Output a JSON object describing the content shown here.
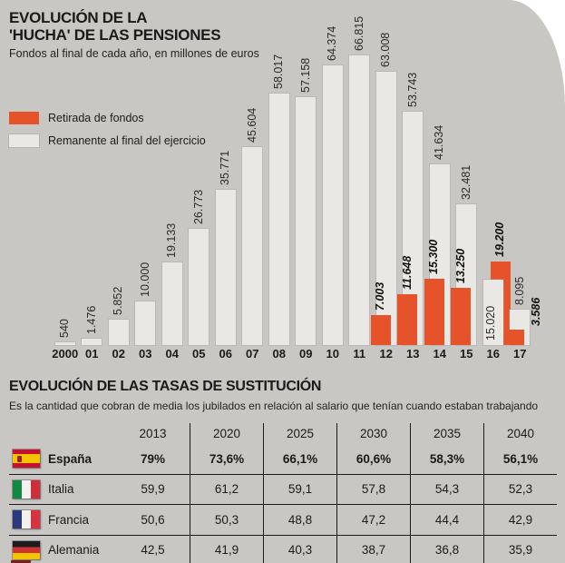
{
  "colors": {
    "background": "#c8c7c4",
    "bar_remanente": "#e9e8e5",
    "bar_retirada": "#e6532a",
    "text": "#1a1a1a"
  },
  "top_chart": {
    "title_line1": "EVOLUCIÓN DE LA",
    "title_line2": "'HUCHA' DE LAS PENSIONES",
    "subtitle": "Fondos al final de cada año, en millones de euros",
    "legend": [
      {
        "label": "Retirada de fondos",
        "color": "#e6532a"
      },
      {
        "label": "Remanente al final del ejercicio",
        "color": "#e9e8e5"
      }
    ],
    "bars": [
      {
        "year": "2000",
        "remanente": 540,
        "remanente_label": "540"
      },
      {
        "year": "01",
        "remanente": 1476,
        "remanente_label": "1.476"
      },
      {
        "year": "02",
        "remanente": 5852,
        "remanente_label": "5.852"
      },
      {
        "year": "03",
        "remanente": 10000,
        "remanente_label": "10.000"
      },
      {
        "year": "04",
        "remanente": 19133,
        "remanente_label": "19.133"
      },
      {
        "year": "05",
        "remanente": 26773,
        "remanente_label": "26.773"
      },
      {
        "year": "06",
        "remanente": 35771,
        "remanente_label": "35.771"
      },
      {
        "year": "07",
        "remanente": 45604,
        "remanente_label": "45.604"
      },
      {
        "year": "08",
        "remanente": 58017,
        "remanente_label": "58.017"
      },
      {
        "year": "09",
        "remanente": 57158,
        "remanente_label": "57.158"
      },
      {
        "year": "10",
        "remanente": 64374,
        "remanente_label": "64.374"
      },
      {
        "year": "11",
        "remanente": 66815,
        "remanente_label": "66.815"
      },
      {
        "year": "12",
        "remanente": 63008,
        "remanente_label": "63.008",
        "retirada": 7003,
        "retirada_label": "7.003"
      },
      {
        "year": "13",
        "remanente": 53743,
        "remanente_label": "53.743",
        "retirada": 11648,
        "retirada_label": "11.648"
      },
      {
        "year": "14",
        "remanente": 41634,
        "remanente_label": "41.634",
        "retirada": 15300,
        "retirada_label": "15.300"
      },
      {
        "year": "15",
        "remanente": 32481,
        "remanente_label": "32.481",
        "retirada": 13250,
        "retirada_label": "13.250"
      },
      {
        "year": "16",
        "remanente": 15020,
        "remanente_label": "15.020",
        "retirada": 19200,
        "retirada_label": "19.200",
        "remanente_label_position": "inside",
        "retirada_position": "overlap-right",
        "gray_in_front": true
      },
      {
        "year": "17",
        "remanente": 8095,
        "remanente_label": "8.095",
        "retirada": 3586,
        "retirada_label": "3.586",
        "retirada_label_position": "right-of-bar"
      }
    ]
  },
  "table_section": {
    "title": "EVOLUCIÓN DE LAS TASAS DE SUSTITUCIÓN",
    "subtitle": "Es la cantidad que cobran de media los jubilados en relación al salario que tenían cuando estaban trabajando",
    "columns": [
      "2013",
      "2020",
      "2025",
      "2030",
      "2035",
      "2040"
    ],
    "rows": [
      {
        "country": "España",
        "flag": "es",
        "bold": true,
        "values": [
          "79%",
          "73,6%",
          "66,1%",
          "60,6%",
          "58,3%",
          "56,1%"
        ]
      },
      {
        "country": "Italia",
        "flag": "it",
        "bold": false,
        "values": [
          "59,9",
          "61,2",
          "59,1",
          "57,8",
          "54,3",
          "52,3"
        ]
      },
      {
        "country": "Francia",
        "flag": "fr",
        "bold": false,
        "values": [
          "50,6",
          "50,3",
          "48,8",
          "47,2",
          "44,4",
          "42,9"
        ]
      },
      {
        "country": "Alemania",
        "flag": "de",
        "bold": false,
        "values": [
          "42,5",
          "41,9",
          "40,3",
          "38,7",
          "36,8",
          "35,9"
        ]
      }
    ]
  },
  "chart_data": [
    {
      "type": "bar",
      "title": "EVOLUCIÓN DE LA 'HUCHA' DE LAS PENSIONES",
      "subtitle": "Fondos al final de cada año, en millones de euros",
      "categories": [
        "2000",
        "01",
        "02",
        "03",
        "04",
        "05",
        "06",
        "07",
        "08",
        "09",
        "10",
        "11",
        "12",
        "13",
        "14",
        "15",
        "16",
        "17"
      ],
      "series": [
        {
          "name": "Remanente al final del ejercicio",
          "values": [
            540,
            1476,
            5852,
            10000,
            19133,
            26773,
            35771,
            45604,
            58017,
            57158,
            64374,
            66815,
            63008,
            53743,
            41634,
            32481,
            15020,
            8095
          ]
        },
        {
          "name": "Retirada de fondos",
          "values": [
            null,
            null,
            null,
            null,
            null,
            null,
            null,
            null,
            null,
            null,
            null,
            null,
            7003,
            11648,
            15300,
            13250,
            19200,
            3586
          ]
        }
      ],
      "ylim": [
        0,
        66815
      ],
      "ylabel": "millones de euros",
      "grid": false,
      "legend_position": "top-left",
      "value_labels": true
    },
    {
      "type": "table",
      "title": "EVOLUCIÓN DE LAS TASAS DE SUSTITUCIÓN",
      "columns": [
        "2013",
        "2020",
        "2025",
        "2030",
        "2035",
        "2040"
      ],
      "rows": [
        {
          "label": "España",
          "values": [
            79,
            73.6,
            66.1,
            60.6,
            58.3,
            56.1
          ]
        },
        {
          "label": "Italia",
          "values": [
            59.9,
            61.2,
            59.1,
            57.8,
            54.3,
            52.3
          ]
        },
        {
          "label": "Francia",
          "values": [
            50.6,
            50.3,
            48.8,
            47.2,
            44.4,
            42.9
          ]
        },
        {
          "label": "Alemania",
          "values": [
            42.5,
            41.9,
            40.3,
            38.7,
            36.8,
            35.9
          ]
        }
      ]
    }
  ]
}
